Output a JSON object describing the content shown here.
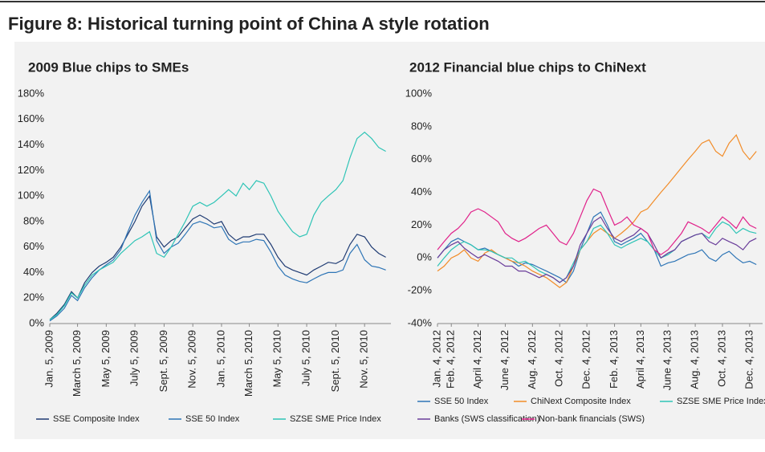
{
  "figure_title": "Figure 8: Historical turning point of China A style rotation",
  "chart_data": [
    {
      "type": "line",
      "title": "2009 Blue chips to SMEs",
      "x": [
        "2009-01-05",
        "2009-01-20",
        "2009-02-05",
        "2009-02-20",
        "2009-03-05",
        "2009-03-20",
        "2009-04-05",
        "2009-04-20",
        "2009-05-05",
        "2009-05-20",
        "2009-06-05",
        "2009-06-20",
        "2009-07-05",
        "2009-07-20",
        "2009-08-05",
        "2009-08-20",
        "2009-09-05",
        "2009-09-20",
        "2009-10-05",
        "2009-10-20",
        "2009-11-05",
        "2009-11-20",
        "2009-12-05",
        "2009-12-20",
        "2010-01-05",
        "2010-01-20",
        "2010-02-05",
        "2010-02-20",
        "2010-03-05",
        "2010-03-20",
        "2010-04-05",
        "2010-04-20",
        "2010-05-05",
        "2010-05-20",
        "2010-06-05",
        "2010-06-20",
        "2010-07-05",
        "2010-07-20",
        "2010-08-05",
        "2010-08-20",
        "2010-09-05",
        "2010-09-20",
        "2010-10-05",
        "2010-10-20",
        "2010-11-05",
        "2010-11-20",
        "2010-12-05",
        "2010-12-20"
      ],
      "series": [
        {
          "name": "SSE Composite Index",
          "color": "#1f3b73",
          "values": [
            3,
            8,
            15,
            25,
            20,
            32,
            40,
            45,
            48,
            52,
            60,
            70,
            80,
            92,
            100,
            68,
            60,
            65,
            68,
            75,
            82,
            85,
            82,
            78,
            80,
            70,
            65,
            68,
            68,
            70,
            70,
            62,
            52,
            45,
            42,
            40,
            38,
            42,
            45,
            48,
            47,
            50,
            62,
            70,
            68,
            60,
            55,
            52
          ]
        },
        {
          "name": "SSE 50 Index",
          "color": "#2e75b6",
          "values": [
            2,
            6,
            12,
            22,
            18,
            28,
            36,
            42,
            46,
            50,
            58,
            72,
            85,
            95,
            104,
            65,
            55,
            60,
            63,
            70,
            78,
            80,
            78,
            75,
            76,
            66,
            62,
            64,
            64,
            66,
            65,
            56,
            45,
            38,
            35,
            33,
            32,
            35,
            38,
            40,
            40,
            42,
            55,
            62,
            50,
            45,
            44,
            42
          ]
        },
        {
          "name": "SZSE SME Price Index",
          "color": "#2ec4b6",
          "values": [
            3,
            7,
            14,
            24,
            20,
            30,
            38,
            42,
            45,
            48,
            55,
            60,
            65,
            68,
            72,
            55,
            52,
            60,
            70,
            80,
            92,
            95,
            92,
            95,
            100,
            105,
            100,
            110,
            105,
            112,
            110,
            100,
            88,
            80,
            72,
            68,
            70,
            85,
            95,
            100,
            105,
            112,
            130,
            145,
            150,
            145,
            138,
            135
          ]
        }
      ],
      "xlim": [
        "2009-01-05",
        "2010-12-31"
      ],
      "xticks": [
        {
          "value": "2009-01-05",
          "label": "Jan. 5, 2009"
        },
        {
          "value": "2009-03-05",
          "label": "March 5, 2009"
        },
        {
          "value": "2009-05-05",
          "label": "May 5, 2009"
        },
        {
          "value": "2009-07-05",
          "label": "July 5, 2009"
        },
        {
          "value": "2009-09-05",
          "label": "Sept. 5, 2009"
        },
        {
          "value": "2009-11-05",
          "label": "Nov. 5, 2009"
        },
        {
          "value": "2010-01-05",
          "label": "Jan. 5, 2010"
        },
        {
          "value": "2010-03-05",
          "label": "March 5, 2010"
        },
        {
          "value": "2010-05-05",
          "label": "May 5, 2010"
        },
        {
          "value": "2010-07-05",
          "label": "July 5, 2010"
        },
        {
          "value": "2010-09-05",
          "label": "Sept. 5, 2010"
        },
        {
          "value": "2010-11-05",
          "label": "Nov. 5, 2010"
        }
      ],
      "ylim": [
        0,
        180
      ],
      "yticks": [
        {
          "value": 0,
          "label": "0%"
        },
        {
          "value": 20,
          "label": "20%"
        },
        {
          "value": 40,
          "label": "40%"
        },
        {
          "value": 60,
          "label": "60%"
        },
        {
          "value": 80,
          "label": "80%"
        },
        {
          "value": 100,
          "label": "100%"
        },
        {
          "value": 120,
          "label": "120%"
        },
        {
          "value": 140,
          "label": "140%"
        },
        {
          "value": 160,
          "label": "160%"
        },
        {
          "value": 180,
          "label": "180%"
        }
      ]
    },
    {
      "type": "line",
      "title": "2012 Financial blue chips to ChiNext",
      "x": [
        "2012-01-04",
        "2012-01-19",
        "2012-02-04",
        "2012-02-19",
        "2012-03-04",
        "2012-03-19",
        "2012-04-04",
        "2012-04-19",
        "2012-05-04",
        "2012-05-19",
        "2012-06-04",
        "2012-06-19",
        "2012-07-04",
        "2012-07-19",
        "2012-08-04",
        "2012-08-19",
        "2012-09-04",
        "2012-09-19",
        "2012-10-04",
        "2012-10-19",
        "2012-11-04",
        "2012-11-19",
        "2012-12-04",
        "2012-12-19",
        "2013-01-04",
        "2013-01-19",
        "2013-02-04",
        "2013-02-19",
        "2013-03-04",
        "2013-03-19",
        "2013-04-04",
        "2013-04-19",
        "2013-05-04",
        "2013-05-19",
        "2013-06-04",
        "2013-06-19",
        "2013-07-04",
        "2013-07-19",
        "2013-08-04",
        "2013-08-19",
        "2013-09-04",
        "2013-09-19",
        "2013-10-04",
        "2013-10-19",
        "2013-11-04",
        "2013-11-19",
        "2013-12-04",
        "2013-12-19"
      ],
      "series": [
        {
          "name": "SSE 50 Index",
          "color": "#2e75b6",
          "values": [
            0,
            5,
            10,
            12,
            10,
            8,
            5,
            6,
            4,
            2,
            0,
            -2,
            -5,
            -3,
            -4,
            -6,
            -8,
            -10,
            -12,
            -15,
            -8,
            5,
            15,
            25,
            28,
            20,
            10,
            8,
            10,
            12,
            15,
            10,
            5,
            -5,
            -3,
            -2,
            0,
            2,
            3,
            5,
            0,
            -2,
            2,
            4,
            0,
            -3,
            -2,
            -4
          ]
        },
        {
          "name": "ChiNext Composite Index",
          "color": "#f28c28",
          "values": [
            -8,
            -5,
            0,
            2,
            5,
            0,
            -2,
            3,
            5,
            2,
            0,
            -2,
            -3,
            -5,
            -8,
            -10,
            -12,
            -15,
            -18,
            -15,
            -5,
            5,
            10,
            15,
            18,
            15,
            12,
            15,
            18,
            22,
            28,
            30,
            35,
            40,
            45,
            50,
            55,
            60,
            65,
            70,
            72,
            65,
            62,
            70,
            75,
            65,
            60,
            65
          ]
        },
        {
          "name": "SZSE SME Price Index",
          "color": "#2ec4b6",
          "values": [
            -5,
            0,
            5,
            8,
            10,
            8,
            5,
            5,
            4,
            2,
            0,
            0,
            -3,
            -2,
            -5,
            -8,
            -10,
            -12,
            -15,
            -12,
            -3,
            5,
            10,
            18,
            20,
            15,
            8,
            6,
            8,
            10,
            12,
            10,
            5,
            0,
            2,
            5,
            10,
            12,
            14,
            15,
            12,
            18,
            22,
            20,
            15,
            18,
            16,
            15
          ]
        },
        {
          "name": "Banks (SWS classification)",
          "color": "#6a3d9a",
          "values": [
            0,
            5,
            8,
            10,
            6,
            3,
            0,
            2,
            0,
            -2,
            -5,
            -5,
            -8,
            -8,
            -10,
            -12,
            -10,
            -12,
            -15,
            -12,
            -5,
            8,
            15,
            22,
            25,
            18,
            12,
            10,
            12,
            14,
            18,
            15,
            8,
            0,
            3,
            5,
            10,
            12,
            14,
            15,
            10,
            8,
            12,
            10,
            8,
            5,
            10,
            12
          ]
        },
        {
          "name": "Non-bank financials (SWS)",
          "color": "#e0218a",
          "values": [
            5,
            10,
            15,
            18,
            22,
            28,
            30,
            28,
            25,
            22,
            15,
            12,
            10,
            12,
            15,
            18,
            20,
            15,
            10,
            8,
            15,
            25,
            35,
            42,
            40,
            30,
            20,
            22,
            25,
            20,
            18,
            15,
            5,
            2,
            5,
            10,
            15,
            22,
            20,
            18,
            15,
            20,
            25,
            22,
            18,
            25,
            20,
            18
          ]
        }
      ],
      "xlim": [
        "2012-01-04",
        "2014-01-02"
      ],
      "xticks": [
        {
          "value": "2012-01-04",
          "label": "Jan. 4, 2012"
        },
        {
          "value": "2012-02-04",
          "label": "Feb. 4, 2012"
        },
        {
          "value": "2012-04-04",
          "label": "April 4, 2012"
        },
        {
          "value": "2012-06-04",
          "label": "June 4, 2012"
        },
        {
          "value": "2012-08-04",
          "label": "Aug. 4, 2012"
        },
        {
          "value": "2012-10-04",
          "label": "Oct. 4, 2012"
        },
        {
          "value": "2012-12-04",
          "label": "Dec. 4, 2012"
        },
        {
          "value": "2013-02-04",
          "label": "Feb. 4, 2013"
        },
        {
          "value": "2013-04-04",
          "label": "April 4, 2013"
        },
        {
          "value": "2013-06-04",
          "label": "June 4, 2013"
        },
        {
          "value": "2013-08-04",
          "label": "Aug. 4, 2013"
        },
        {
          "value": "2013-10-04",
          "label": "Oct. 4, 2013"
        },
        {
          "value": "2013-12-04",
          "label": "Dec. 4, 2013"
        }
      ],
      "ylim": [
        -40,
        100
      ],
      "yticks": [
        {
          "value": -40,
          "label": "-40%"
        },
        {
          "value": -20,
          "label": "-20%"
        },
        {
          "value": 0,
          "label": "0%"
        },
        {
          "value": 20,
          "label": "20%"
        },
        {
          "value": 40,
          "label": "40%"
        },
        {
          "value": 60,
          "label": "60%"
        },
        {
          "value": 80,
          "label": "80%"
        },
        {
          "value": 100,
          "label": "100%"
        }
      ]
    }
  ]
}
